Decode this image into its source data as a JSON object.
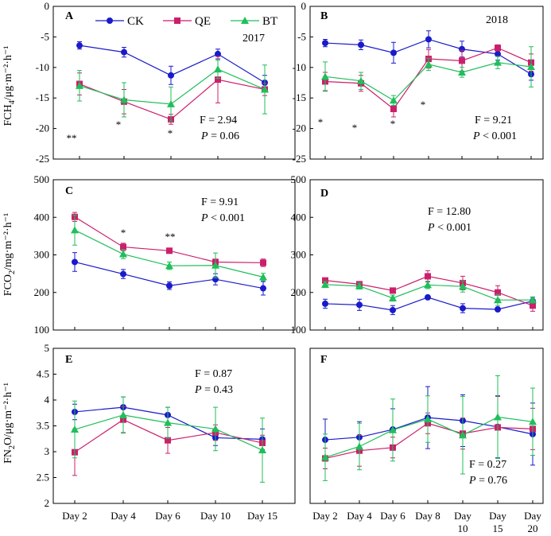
{
  "legend": {
    "ck": "CK",
    "qe": "QE",
    "bt": "BT"
  },
  "colors": {
    "CK": "#1a1acc",
    "QE": "#cc1f6b",
    "BT": "#1fbf5a"
  },
  "y_labels": {
    "ch4": {
      "pre": "FCH",
      "sub": "4",
      "post": "/μg·m⁻²·h⁻¹"
    },
    "co2": {
      "pre": "FCO",
      "sub": "2",
      "post": "/mg·m⁻²·h⁻¹"
    },
    "n2o": {
      "pre": "FN",
      "sub": "2",
      "post": "O/μg·m⁻²·h⁻¹"
    }
  },
  "x_labels": {
    "left": [
      "Day 2",
      "Day 4",
      "Day 6",
      "Day 10",
      "Day 15"
    ],
    "right": [
      [
        "Day 2"
      ],
      [
        "Day 4"
      ],
      [
        "Day 6"
      ],
      [
        "Day 8"
      ],
      [
        "Day",
        "10"
      ],
      [
        "Day",
        "15"
      ],
      [
        "Day",
        "20"
      ]
    ]
  },
  "chart_data": [
    {
      "panel": "A",
      "type": "line",
      "year": "2017",
      "ylim": [
        -25,
        0
      ],
      "yticks": [
        0,
        -5,
        -10,
        -15,
        -20,
        -25
      ],
      "stat_f": "F = 2.94",
      "stat_p": "P = 0.06",
      "series": [
        {
          "name": "CK",
          "values": [
            -6.4,
            -7.5,
            -11.3,
            -7.8,
            -12.5
          ],
          "errors": [
            0.6,
            0.8,
            1.5,
            0.8,
            1.2
          ]
        },
        {
          "name": "QE",
          "values": [
            -12.7,
            -15.6,
            -18.5,
            -12.0,
            -13.6
          ],
          "errors": [
            1.8,
            2.0,
            0.8,
            3.8,
            1.0
          ]
        },
        {
          "name": "BT",
          "values": [
            -13.0,
            -15.3,
            -16.0,
            -10.3,
            -13.6
          ],
          "errors": [
            2.5,
            2.8,
            2.8,
            1.5,
            4.0
          ]
        }
      ],
      "annotations": [
        {
          "label": "**",
          "x": 0
        },
        {
          "label": "*",
          "x": 1
        },
        {
          "label": "*",
          "x": 2
        }
      ]
    },
    {
      "panel": "B",
      "type": "line",
      "year": "2018",
      "ylim": [
        -25,
        0
      ],
      "yticks": [
        0,
        -5,
        -10,
        -15,
        -20,
        -25
      ],
      "stat_f": "F = 9.21",
      "stat_p": "P < 0.001",
      "series": [
        {
          "name": "CK",
          "values": [
            -6.0,
            -6.3,
            -7.6,
            -5.4,
            -7.0,
            -7.8,
            -11.1
          ],
          "errors": [
            0.6,
            0.8,
            1.7,
            1.4,
            1.3,
            1.0,
            1.0
          ]
        },
        {
          "name": "QE",
          "values": [
            -12.3,
            -12.6,
            -16.8,
            -8.6,
            -8.9,
            -6.8,
            -9.2
          ],
          "errors": [
            1.5,
            1.3,
            1.3,
            1.5,
            1.7,
            0.5,
            1.4
          ]
        },
        {
          "name": "BT",
          "values": [
            -11.5,
            -12.2,
            -15.4,
            -9.5,
            -10.8,
            -9.2,
            -9.9
          ],
          "errors": [
            2.4,
            1.4,
            0.8,
            1.0,
            0.8,
            1.0,
            3.3
          ]
        }
      ],
      "annotations": [
        {
          "label": "*",
          "x": 0
        },
        {
          "label": "*",
          "x": 1
        },
        {
          "label": "*",
          "x": 2
        },
        {
          "label": "*",
          "x": 3
        }
      ]
    },
    {
      "panel": "C",
      "type": "line",
      "ylim": [
        100,
        500
      ],
      "yticks": [
        500,
        400,
        300,
        200,
        100
      ],
      "stat_f": "F = 9.91",
      "stat_p": "P < 0.001",
      "series": [
        {
          "name": "CK",
          "values": [
            281,
            249,
            218,
            235,
            211
          ],
          "errors": [
            25,
            12,
            10,
            15,
            18
          ]
        },
        {
          "name": "QE",
          "values": [
            401,
            321,
            311,
            281,
            279
          ],
          "errors": [
            12,
            10,
            5,
            8,
            10
          ]
        },
        {
          "name": "BT",
          "values": [
            366,
            302,
            271,
            272,
            241
          ],
          "errors": [
            40,
            12,
            10,
            33,
            10
          ]
        }
      ],
      "annotations": [
        {
          "label": "*",
          "x": 1
        },
        {
          "label": "**",
          "x": 2
        }
      ]
    },
    {
      "panel": "D",
      "type": "line",
      "ylim": [
        100,
        500
      ],
      "yticks": [
        500,
        400,
        300,
        200,
        100
      ],
      "stat_f": "F = 12.80",
      "stat_p": "P < 0.001",
      "series": [
        {
          "name": "CK",
          "values": [
            170,
            167,
            153,
            187,
            158,
            155,
            177
          ],
          "errors": [
            12,
            15,
            12,
            5,
            12,
            5,
            10
          ]
        },
        {
          "name": "QE",
          "values": [
            232,
            222,
            205,
            243,
            225,
            200,
            165
          ],
          "errors": [
            5,
            5,
            5,
            15,
            18,
            18,
            15
          ]
        },
        {
          "name": "BT",
          "values": [
            221,
            217,
            185,
            220,
            216,
            180,
            180
          ],
          "errors": [
            8,
            8,
            8,
            10,
            15,
            15,
            8
          ]
        }
      ],
      "annotations": []
    },
    {
      "panel": "E",
      "type": "line",
      "ylim": [
        2,
        5
      ],
      "yticks": [
        5,
        4.5,
        4,
        3.5,
        3,
        2.5,
        2
      ],
      "stat_f": "F = 0.87",
      "stat_p": "P = 0.43",
      "series": [
        {
          "name": "CK",
          "values": [
            3.77,
            3.86,
            3.71,
            3.27,
            3.24
          ],
          "errors": [
            0.15,
            0.2,
            0.15,
            0.15,
            0.2
          ]
        },
        {
          "name": "QE",
          "values": [
            2.99,
            3.62,
            3.22,
            3.37,
            3.17
          ],
          "errors": [
            0.45,
            0.25,
            0.25,
            0.15,
            0.15
          ]
        },
        {
          "name": "BT",
          "values": [
            3.43,
            3.71,
            3.56,
            3.44,
            3.03
          ],
          "errors": [
            0.55,
            0.35,
            0.3,
            0.42,
            0.62
          ]
        }
      ],
      "annotations": []
    },
    {
      "panel": "F",
      "type": "line",
      "ylim": [
        2,
        5
      ],
      "yticks": [],
      "stat_f": "F = 0.27",
      "stat_p": "P = 0.76",
      "series": [
        {
          "name": "CK",
          "values": [
            3.23,
            3.28,
            3.43,
            3.66,
            3.6,
            3.48,
            3.34
          ],
          "errors": [
            0.4,
            0.3,
            0.4,
            0.6,
            0.5,
            0.6,
            0.6
          ]
        },
        {
          "name": "QE",
          "values": [
            2.87,
            3.02,
            3.08,
            3.55,
            3.35,
            3.47,
            3.44
          ],
          "errors": [
            0.2,
            0.3,
            0.2,
            0.2,
            0.3,
            0.6,
            0.4
          ]
        },
        {
          "name": "BT",
          "values": [
            2.89,
            3.1,
            3.42,
            3.63,
            3.32,
            3.67,
            3.58
          ],
          "errors": [
            0.45,
            0.45,
            0.6,
            0.45,
            0.75,
            0.8,
            0.65
          ]
        }
      ],
      "annotations": []
    }
  ]
}
